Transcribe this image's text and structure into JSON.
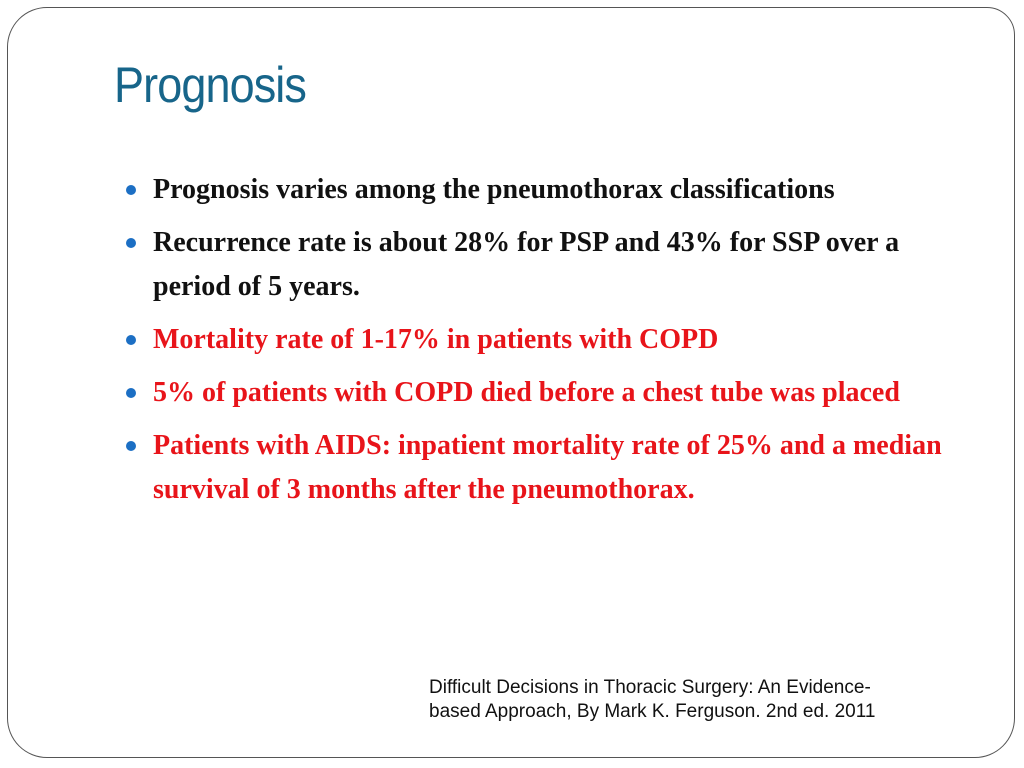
{
  "slide": {
    "title": "Prognosis",
    "colors": {
      "title": "#17658a",
      "bullet_dot": "#1c6fc4",
      "highlight": "#e8141a",
      "text": "#111111"
    },
    "bullets": [
      {
        "text": "Prognosis varies among the pneumothorax classifications",
        "color": "black"
      },
      {
        "text": "Recurrence rate is about 28% for PSP and 43% for SSP over a period of 5 years.",
        "color": "black"
      },
      {
        "text": "Mortality rate of 1-17% in patients with COPD",
        "color": "red"
      },
      {
        "text": "5% of patients with COPD died before a chest tube was placed",
        "color": "red"
      },
      {
        "text": "Patients with AIDS: inpatient mortality rate of 25% and a median survival of 3 months after the pneumothorax.",
        "color": "red"
      }
    ],
    "citation": {
      "line1": "Difficult Decisions in Thoracic Surgery: An Evidence-",
      "line2": "based Approach, By Mark K. Ferguson.  2nd ed. 2011"
    }
  }
}
